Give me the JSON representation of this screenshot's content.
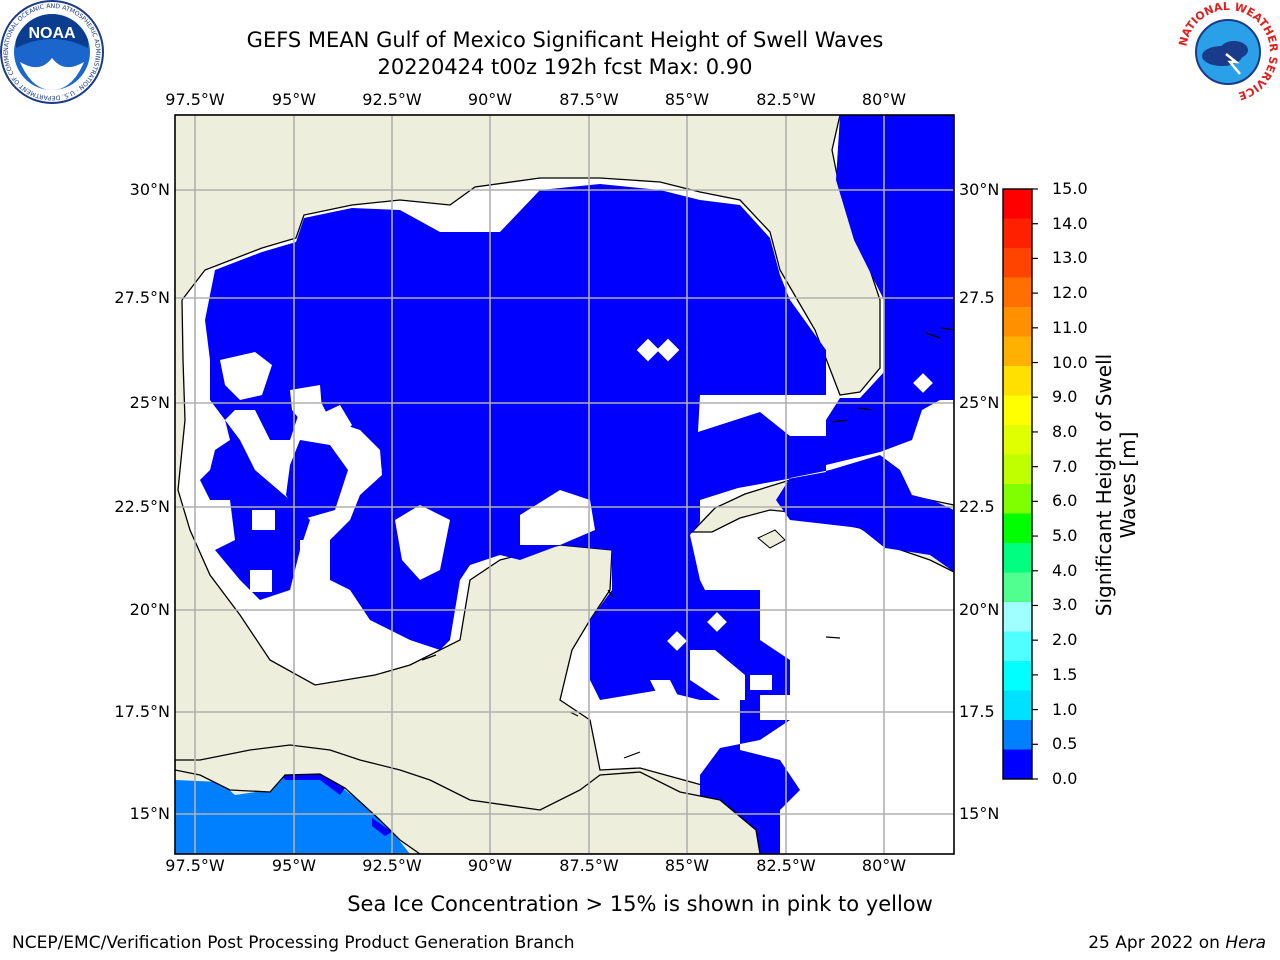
{
  "header": {
    "title_line1": "GEFS MEAN Gulf of Mexico Significant Height of Swell Waves",
    "title_line2": "20220424 t00z 192h fcst   Max: 0.90"
  },
  "axes": {
    "longitudes": [
      "97.5°W",
      "95°W",
      "92.5°W",
      "90°W",
      "87.5°W",
      "85°W",
      "82.5°W",
      "80°W"
    ],
    "latitudes_left": [
      "30°N",
      "27.5°N",
      "25°N",
      "22.5°N",
      "20°N",
      "17.5°N",
      "15°N"
    ],
    "latitudes_right": [
      "30°N",
      "27.5",
      "25°N",
      "22.5",
      "20°N",
      "17.5",
      "15°N"
    ]
  },
  "colorbar": {
    "title_line1": "Significant Height of Swell",
    "title_line2": "Waves [m]",
    "ticks": [
      "15.0",
      "14.0",
      "13.0",
      "12.0",
      "11.0",
      "10.0",
      "9.0",
      "8.0",
      "7.0",
      "6.0",
      "5.0",
      "4.0",
      "3.0",
      "2.0",
      "1.5",
      "1.0",
      "0.5",
      "0.0"
    ],
    "colors_top_to_bottom": [
      "#ff0000",
      "#ff2000",
      "#ff4400",
      "#ff7000",
      "#ff9000",
      "#ffb000",
      "#ffe000",
      "#ffff00",
      "#e0ff00",
      "#c0ff00",
      "#80ff00",
      "#00ff00",
      "#00ff80",
      "#50ff90",
      "#a0ffff",
      "#50ffff",
      "#00ffff",
      "#00e0ff",
      "#0080ff",
      "#0000ff"
    ]
  },
  "map": {
    "land_color": "#eeeedd",
    "ocean_color": "#0000ff",
    "low_color": "#0080ff",
    "grid_color": "#b0b0b0"
  },
  "footer": {
    "note": "Sea Ice Concentration > 15% is shown in pink to yellow",
    "credit": "NCEP/EMC/Verification Post Processing Product Generation Branch",
    "date": "25 Apr 2022 on ",
    "host": "Hera"
  },
  "logos": {
    "left_text": "NOAA",
    "left_ring": "NATIONAL OCEANIC AND ATMOSPHERIC ADMINISTRATION · U.S. DEPARTMENT OF COMMERCE",
    "right_ring": "NATIONAL WEATHER SERVICE"
  }
}
